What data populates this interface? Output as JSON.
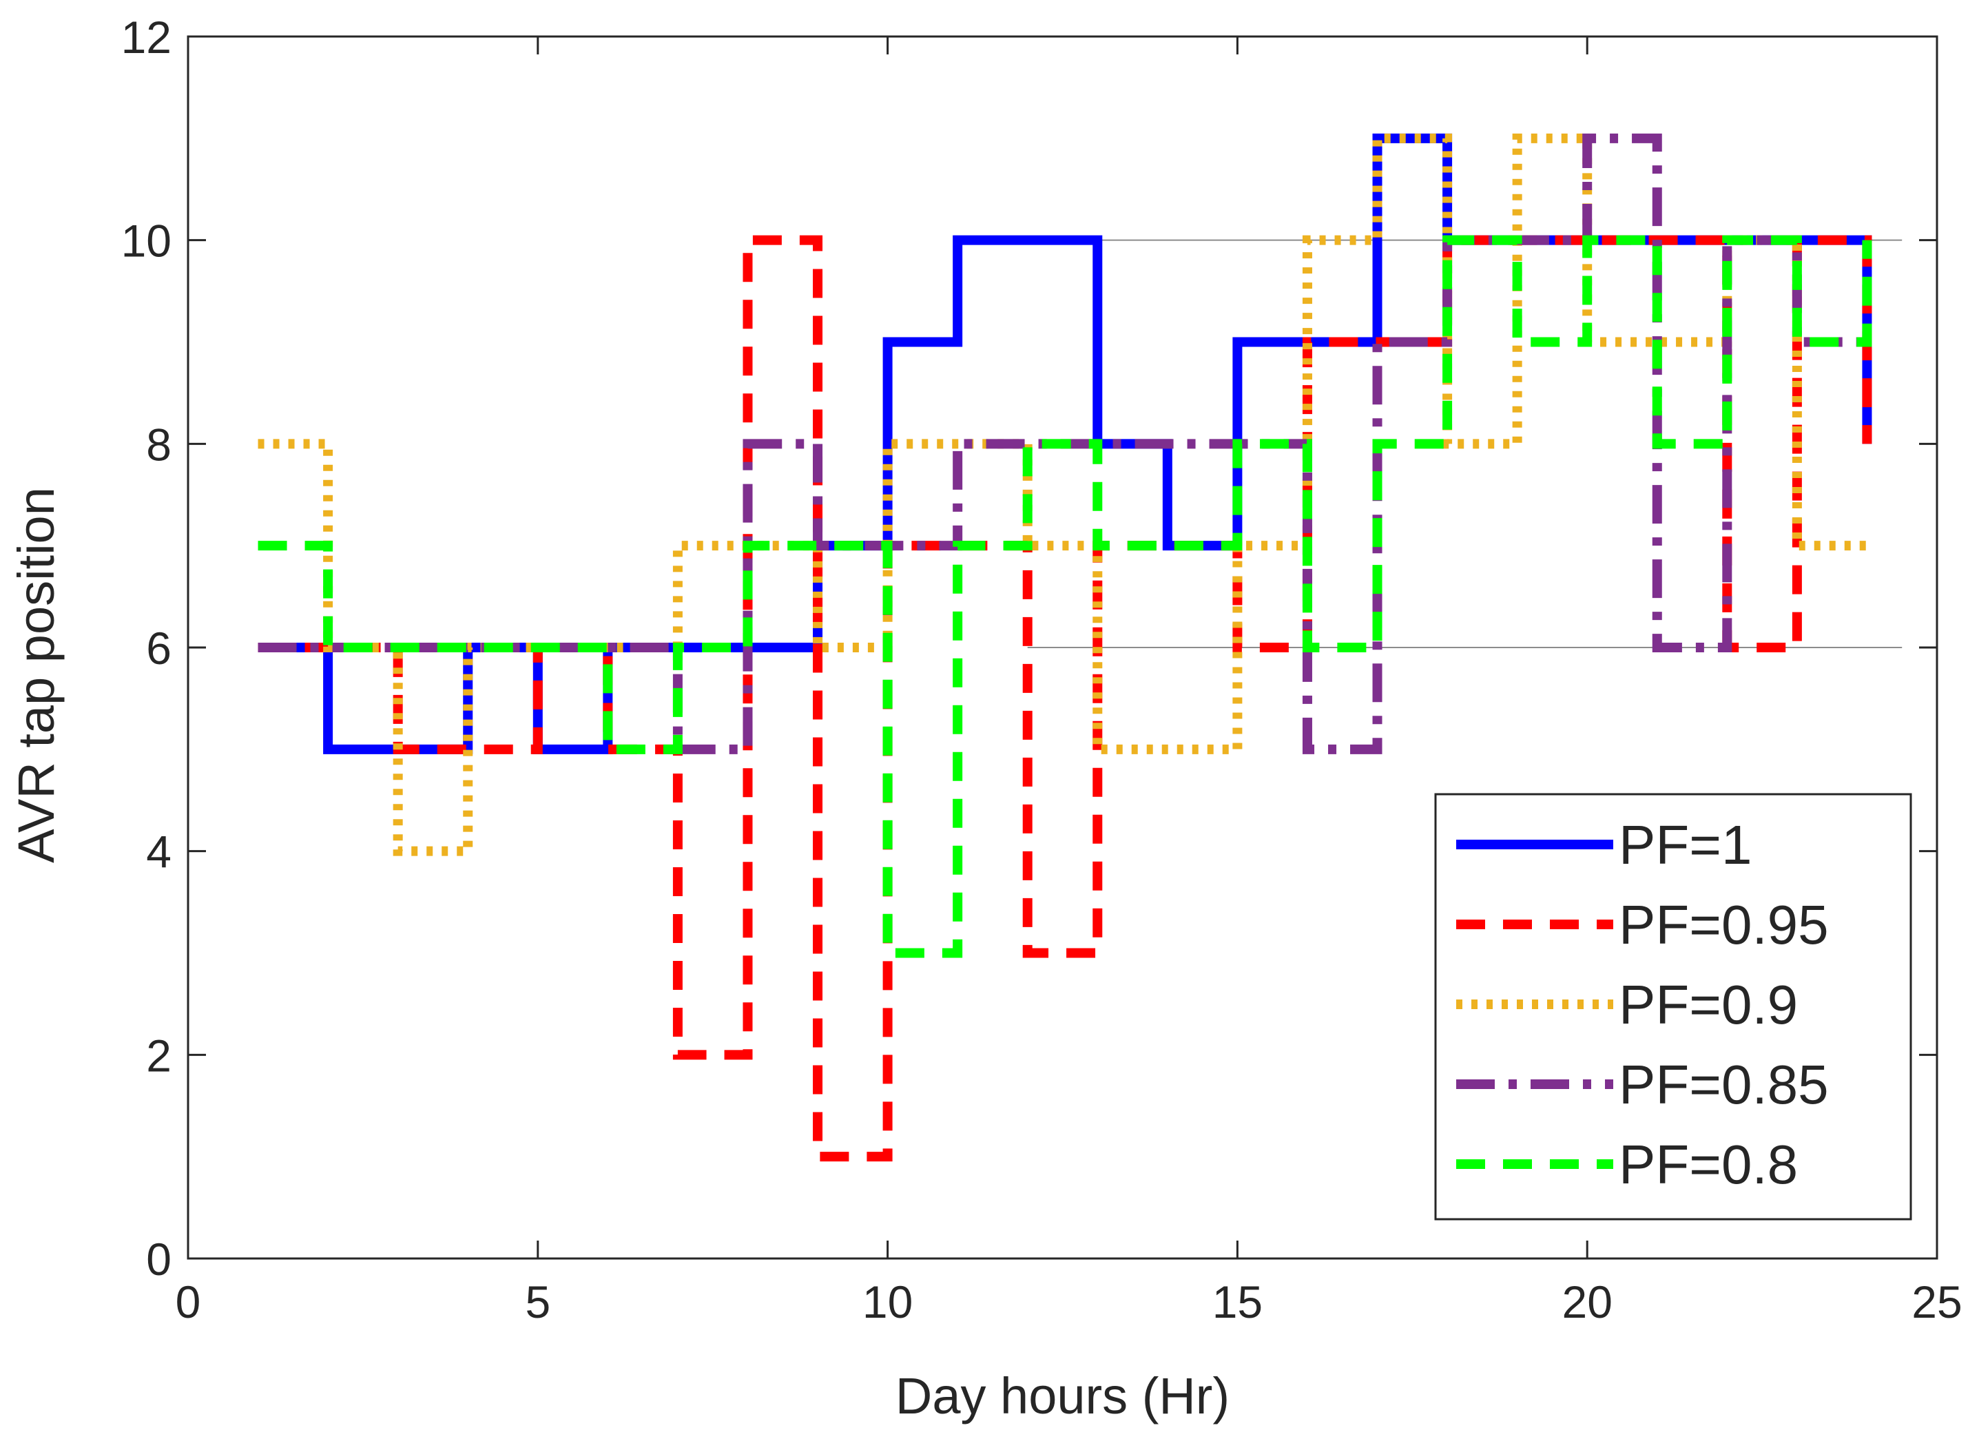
{
  "chart_data": {
    "type": "line",
    "step": "post",
    "title": "",
    "xlabel": "Day hours (Hr)",
    "ylabel": "AVR tap position",
    "xlim": [
      0,
      25
    ],
    "ylim": [
      0,
      12
    ],
    "xticks": [
      0,
      5,
      10,
      15,
      20,
      25
    ],
    "yticks": [
      0,
      2,
      4,
      6,
      8,
      10,
      12
    ],
    "xtick_labels": [
      "0",
      "5",
      "10",
      "15",
      "20",
      "25"
    ],
    "ytick_labels": [
      "0",
      "2",
      "4",
      "6",
      "8",
      "10",
      "12"
    ],
    "legend_position": "bottom-right",
    "x": [
      1,
      2,
      3,
      4,
      5,
      6,
      7,
      8,
      9,
      10,
      11,
      12,
      13,
      14,
      15,
      16,
      17,
      18,
      19,
      20,
      21,
      22,
      23,
      24
    ],
    "series": [
      {
        "name": "PF=1",
        "color": "#0000ff",
        "dash": "solid",
        "values": [
          6,
          5,
          5,
          6,
          5,
          6,
          6,
          6,
          7,
          9,
          10,
          10,
          8,
          7,
          9,
          9,
          11,
          10,
          10,
          10,
          10,
          10,
          10,
          8
        ]
      },
      {
        "name": "PF=0.95",
        "color": "#ff0000",
        "dash": "dashed",
        "values": [
          6,
          6,
          5,
          5,
          6,
          5,
          2,
          10,
          1,
          7,
          7,
          3,
          7,
          7,
          6,
          9,
          9,
          10,
          10,
          10,
          10,
          6,
          10,
          8
        ]
      },
      {
        "name": "PF=0.9",
        "color": "#edb120",
        "dash": "dotted",
        "values": [
          8,
          6,
          4,
          6,
          6,
          6,
          7,
          7,
          6,
          8,
          8,
          7,
          5,
          5,
          7,
          10,
          11,
          8,
          11,
          9,
          9,
          10,
          7,
          7
        ]
      },
      {
        "name": "PF=0.85",
        "color": "#7e2f8e",
        "dash": "dashdot",
        "values": [
          6,
          6,
          6,
          6,
          6,
          6,
          5,
          8,
          7,
          7,
          8,
          8,
          8,
          8,
          8,
          5,
          9,
          10,
          10,
          11,
          6,
          10,
          9,
          9
        ]
      },
      {
        "name": "PF=0.8",
        "color": "#00ff00",
        "dash": "dashed",
        "values": [
          7,
          6,
          6,
          6,
          6,
          5,
          6,
          7,
          7,
          3,
          7,
          8,
          7,
          7,
          8,
          6,
          8,
          10,
          9,
          10,
          8,
          10,
          9,
          10
        ]
      }
    ]
  }
}
